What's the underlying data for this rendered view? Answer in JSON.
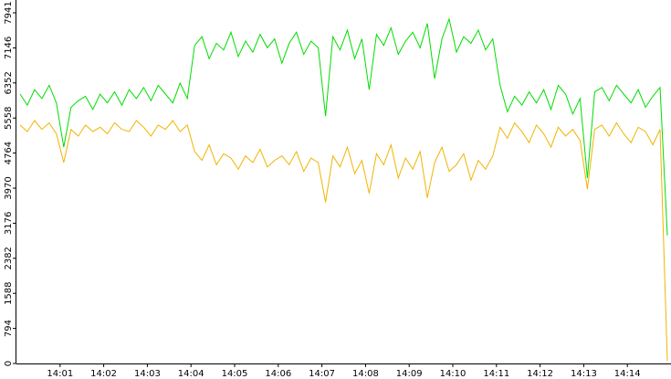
{
  "chart_data": {
    "type": "line",
    "x": [
      "14:00:05",
      "14:00:15",
      "14:00:25",
      "14:00:35",
      "14:00:45",
      "14:00:55",
      "14:01:05",
      "14:01:15",
      "14:01:25",
      "14:01:35",
      "14:01:45",
      "14:01:55",
      "14:02:05",
      "14:02:15",
      "14:02:25",
      "14:02:35",
      "14:02:45",
      "14:02:55",
      "14:03:05",
      "14:03:15",
      "14:03:25",
      "14:03:35",
      "14:03:45",
      "14:03:55",
      "14:04:05",
      "14:04:15",
      "14:04:25",
      "14:04:35",
      "14:04:45",
      "14:04:55",
      "14:05:05",
      "14:05:15",
      "14:05:25",
      "14:05:35",
      "14:05:45",
      "14:05:55",
      "14:06:05",
      "14:06:15",
      "14:06:25",
      "14:06:35",
      "14:06:45",
      "14:06:55",
      "14:07:05",
      "14:07:15",
      "14:07:25",
      "14:07:35",
      "14:07:45",
      "14:07:55",
      "14:08:05",
      "14:08:15",
      "14:08:25",
      "14:08:35",
      "14:08:45",
      "14:08:55",
      "14:09:05",
      "14:09:15",
      "14:09:25",
      "14:09:35",
      "14:09:45",
      "14:09:55",
      "14:10:05",
      "14:10:15",
      "14:10:25",
      "14:10:35",
      "14:10:45",
      "14:10:55",
      "14:11:05",
      "14:11:15",
      "14:11:25",
      "14:11:35",
      "14:11:45",
      "14:11:55",
      "14:12:05",
      "14:12:15",
      "14:12:25",
      "14:12:35",
      "14:12:45",
      "14:12:55",
      "14:13:05",
      "14:13:15",
      "14:13:25",
      "14:13:35",
      "14:13:45",
      "14:13:55",
      "14:14:05",
      "14:14:15",
      "14:14:25",
      "14:14:35",
      "14:14:45",
      "14:14:55"
    ],
    "series": [
      {
        "color": "#00dd00",
        "values": [
          6100,
          5850,
          6200,
          6000,
          6300,
          5900,
          4900,
          5800,
          5950,
          6050,
          5750,
          6100,
          5900,
          6150,
          5850,
          6200,
          6000,
          6250,
          5950,
          6300,
          6100,
          5900,
          6350,
          6000,
          7200,
          7400,
          6900,
          7250,
          7100,
          7500,
          6950,
          7300,
          7050,
          7450,
          7150,
          7350,
          6800,
          7250,
          7500,
          7000,
          7300,
          7150,
          5600,
          7400,
          7100,
          7550,
          6900,
          7350,
          6200,
          7450,
          7200,
          7600,
          7000,
          7300,
          7500,
          7150,
          7700,
          6450,
          7350,
          7800,
          7050,
          7400,
          7250,
          7550,
          7100,
          7350,
          6300,
          5700,
          6050,
          5850,
          6150,
          5900,
          6200,
          5750,
          6300,
          6100,
          5650,
          6000,
          4200,
          6150,
          6250,
          5950,
          6300,
          6100,
          5900,
          6200,
          5800,
          6050,
          6250,
          2900
        ]
      },
      {
        "color": "#f0b400",
        "values": [
          5400,
          5250,
          5500,
          5300,
          5450,
          5200,
          4550,
          5300,
          5150,
          5400,
          5250,
          5350,
          5200,
          5450,
          5300,
          5250,
          5500,
          5350,
          5150,
          5400,
          5300,
          5500,
          5250,
          5400,
          4800,
          4600,
          4950,
          4500,
          4750,
          4650,
          4400,
          4700,
          4550,
          4850,
          4450,
          4600,
          4700,
          4500,
          4800,
          4350,
          4650,
          4550,
          3650,
          4700,
          4450,
          4900,
          4300,
          4600,
          3850,
          4750,
          4500,
          4950,
          4200,
          4650,
          4400,
          4800,
          3750,
          4550,
          4900,
          4350,
          4500,
          4750,
          4150,
          4600,
          4400,
          4700,
          5350,
          5100,
          5450,
          5250,
          5000,
          5400,
          5200,
          4900,
          5350,
          5150,
          5300,
          5050,
          3950,
          5300,
          5400,
          5150,
          5450,
          5200,
          5000,
          5350,
          5250,
          4950,
          5300,
          60
        ]
      }
    ],
    "xlim": [
      "14:00:00",
      "14:15:00"
    ],
    "xticks": [
      "14:01",
      "14:02",
      "14:03",
      "14:04",
      "14:05",
      "14:06",
      "14:07",
      "14:08",
      "14:09",
      "14:10",
      "14:11",
      "14:12",
      "14:13",
      "14:14"
    ],
    "ylim": [
      0,
      7941
    ],
    "yticks": [
      0,
      794,
      1588,
      2382,
      3176,
      3970,
      4764,
      5558,
      6352,
      7146,
      7941
    ]
  }
}
